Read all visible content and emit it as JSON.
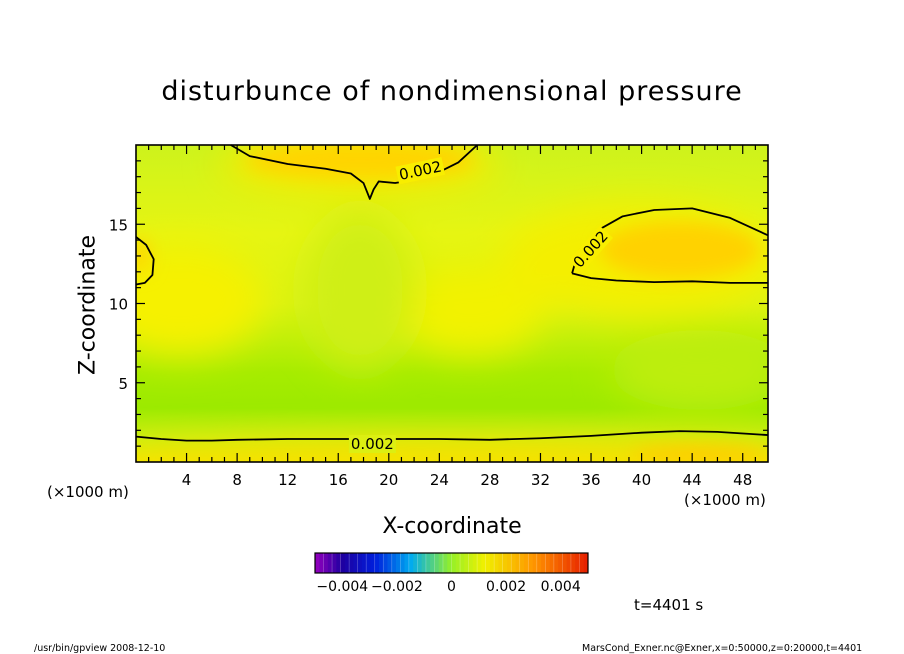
{
  "chart_data": {
    "type": "heatmap",
    "title": "disturbunce of nondimensional pressure",
    "xlabel": "X-coordinate",
    "ylabel": "Z-coordinate",
    "x_unit": "(×1000 m)",
    "xlim": [
      0,
      50
    ],
    "ylim": [
      0,
      20
    ],
    "x_ticks": [
      4,
      8,
      12,
      16,
      20,
      24,
      28,
      32,
      36,
      40,
      44,
      48
    ],
    "y_ticks": [
      5,
      10,
      15
    ],
    "contours": [
      {
        "level": 0.002,
        "label": "0.002",
        "path": [
          [
            7.5,
            20
          ],
          [
            9,
            19.3
          ],
          [
            12,
            18.8
          ],
          [
            15,
            18.5
          ],
          [
            17,
            18.2
          ],
          [
            18,
            17.6
          ],
          [
            18.5,
            16.6
          ],
          [
            18.8,
            17.2
          ],
          [
            19.2,
            17.7
          ],
          [
            20.5,
            17.6
          ],
          [
            22,
            17.8
          ],
          [
            24,
            18.3
          ],
          [
            25.5,
            18.9
          ],
          [
            27,
            20
          ]
        ]
      },
      {
        "level": 0.002,
        "label": "0.002",
        "path": [
          [
            34.5,
            11.9
          ],
          [
            35,
            13.3
          ],
          [
            36.5,
            14.6
          ],
          [
            38.5,
            15.5
          ],
          [
            41,
            15.9
          ],
          [
            44,
            16.0
          ],
          [
            47,
            15.4
          ],
          [
            50,
            14.3
          ]
        ]
      },
      {
        "level": 0.002,
        "label": "",
        "path": [
          [
            50,
            11.3
          ],
          [
            47,
            11.3
          ],
          [
            44,
            11.4
          ],
          [
            41,
            11.35
          ],
          [
            38,
            11.45
          ],
          [
            36,
            11.6
          ],
          [
            34.5,
            11.9
          ]
        ]
      },
      {
        "level": 0.002,
        "label": "",
        "path": [
          [
            0,
            14.2
          ],
          [
            0.8,
            13.7
          ],
          [
            1.4,
            12.8
          ],
          [
            1.3,
            11.8
          ],
          [
            0.7,
            11.3
          ],
          [
            0,
            11.2
          ]
        ]
      },
      {
        "level": 0.002,
        "label": "0.002",
        "path": [
          [
            0,
            1.6
          ],
          [
            2,
            1.45
          ],
          [
            4,
            1.35
          ],
          [
            6,
            1.35
          ],
          [
            8,
            1.4
          ],
          [
            12,
            1.45
          ],
          [
            16,
            1.45
          ],
          [
            20,
            1.45
          ],
          [
            24,
            1.45
          ],
          [
            28,
            1.4
          ],
          [
            32,
            1.5
          ],
          [
            36,
            1.65
          ],
          [
            40,
            1.85
          ],
          [
            43,
            1.95
          ],
          [
            46,
            1.9
          ],
          [
            50,
            1.7
          ]
        ]
      }
    ],
    "colorbar": {
      "min": -0.005,
      "max": 0.005,
      "tick_labels": [
        "−0.004",
        "−0.002",
        "0",
        "0.002",
        "0.004"
      ],
      "tick_values": [
        -0.004,
        -0.002,
        0,
        0.002,
        0.004
      ]
    },
    "time_label": "t=4401 s"
  },
  "footer": {
    "left": "/usr/bin/gpview   2008-12-10",
    "right": "MarsCond_Exner.nc@Exner,x=0:50000,z=0:20000,t=4401"
  },
  "colors": {
    "low": "#a0ef00",
    "mid": "#f8f400",
    "high": "#ffcc00",
    "contour": "#000000"
  }
}
